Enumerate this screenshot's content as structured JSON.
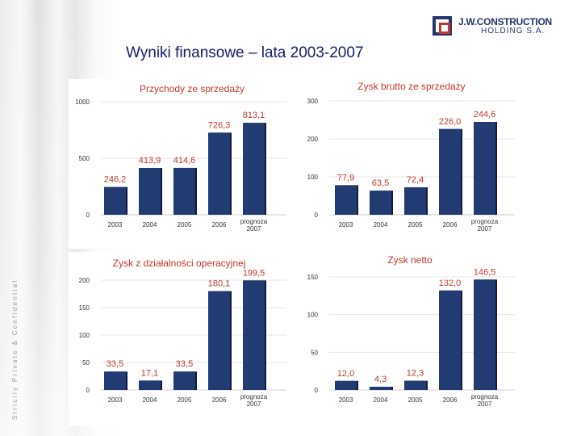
{
  "header": {
    "title": "Wyniki finansowe – lata 2003-2007",
    "logo_line1": "J.W.CONSTRUCTION",
    "logo_line2": "HOLDING S.A."
  },
  "side_text": "Strictly Private & Confidential",
  "colors": {
    "bar": "#223b73",
    "bar_edge": "#101c3e",
    "title_red": "#c0392b",
    "value_red": "#c0392b",
    "title_navy": "#16206b"
  },
  "chart_data": [
    {
      "type": "bar",
      "title": "Przychody ze sprzedaży",
      "categories": [
        "2003",
        "2004",
        "2005",
        "2006",
        "prognoza 2007"
      ],
      "values": [
        246.2,
        413.9,
        414.6,
        726.3,
        813.1
      ],
      "labels": [
        "246,2",
        "413,9",
        "414,6",
        "726,3",
        "813,1"
      ],
      "yticks": [
        0,
        500,
        1000
      ],
      "ylim": [
        0,
        1000
      ],
      "xlabel": "",
      "ylabel": ""
    },
    {
      "type": "bar",
      "title": "Zysk brutto ze sprzedaży",
      "categories": [
        "2003",
        "2004",
        "2005",
        "2006",
        "prognoza 2007"
      ],
      "values": [
        77.9,
        63.5,
        72.4,
        226.0,
        244.6
      ],
      "labels": [
        "77,9",
        "63,5",
        "72,4",
        "226,0",
        "244,6"
      ],
      "yticks": [
        0,
        100,
        200,
        300
      ],
      "ylim": [
        0,
        300
      ],
      "xlabel": "",
      "ylabel": ""
    },
    {
      "type": "bar",
      "title": "Zysk z działalności operacyjnej",
      "categories": [
        "2003",
        "2004",
        "2005",
        "2006",
        "prognoza 2007"
      ],
      "values": [
        33.5,
        17.1,
        33.5,
        180.1,
        199.5
      ],
      "labels": [
        "33,5",
        "17,1",
        "33,5",
        "180,1",
        "199,5"
      ],
      "yticks": [
        0,
        50,
        100,
        150,
        200
      ],
      "ylim": [
        0,
        200
      ],
      "xlabel": "",
      "ylabel": ""
    },
    {
      "type": "bar",
      "title": "Zysk netto",
      "categories": [
        "2003",
        "2004",
        "2005",
        "2006",
        "prognoza 2007"
      ],
      "values": [
        12.0,
        4.3,
        12.3,
        132.0,
        146.5
      ],
      "labels": [
        "12,0",
        "4,3",
        "12,3",
        "132,0",
        "146,5"
      ],
      "yticks": [
        0,
        50,
        100,
        150
      ],
      "ylim": [
        0,
        150
      ],
      "xlabel": "",
      "ylabel": ""
    }
  ]
}
